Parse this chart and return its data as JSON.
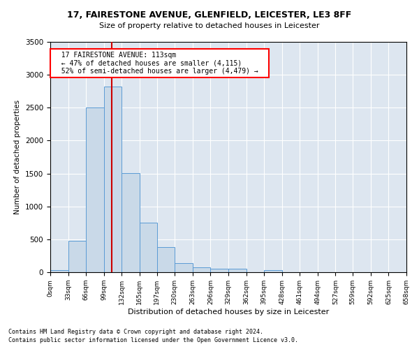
{
  "title1": "17, FAIRESTONE AVENUE, GLENFIELD, LEICESTER, LE3 8FF",
  "title2": "Size of property relative to detached houses in Leicester",
  "xlabel": "Distribution of detached houses by size in Leicester",
  "ylabel": "Number of detached properties",
  "footnote1": "Contains HM Land Registry data © Crown copyright and database right 2024.",
  "footnote2": "Contains public sector information licensed under the Open Government Licence v3.0.",
  "annotation_line1": "17 FAIRESTONE AVENUE: 113sqm",
  "annotation_line2": "← 47% of detached houses are smaller (4,115)",
  "annotation_line3": "52% of semi-detached houses are larger (4,479) →",
  "bar_color": "#c9d9e8",
  "bar_edge_color": "#5b9bd5",
  "red_line_color": "#cc0000",
  "background_color": "#dde6f0",
  "bin_edges": [
    0,
    33,
    66,
    99,
    132,
    165,
    197,
    230,
    263,
    296,
    329,
    362,
    395,
    428,
    461,
    494,
    527,
    559,
    592,
    625,
    658
  ],
  "bar_heights": [
    30,
    480,
    2500,
    2820,
    1510,
    750,
    385,
    140,
    75,
    55,
    55,
    0,
    30,
    0,
    0,
    0,
    0,
    0,
    0,
    0
  ],
  "red_line_x": 113,
  "ylim": [
    0,
    3500
  ],
  "yticks": [
    0,
    500,
    1000,
    1500,
    2000,
    2500,
    3000,
    3500
  ]
}
